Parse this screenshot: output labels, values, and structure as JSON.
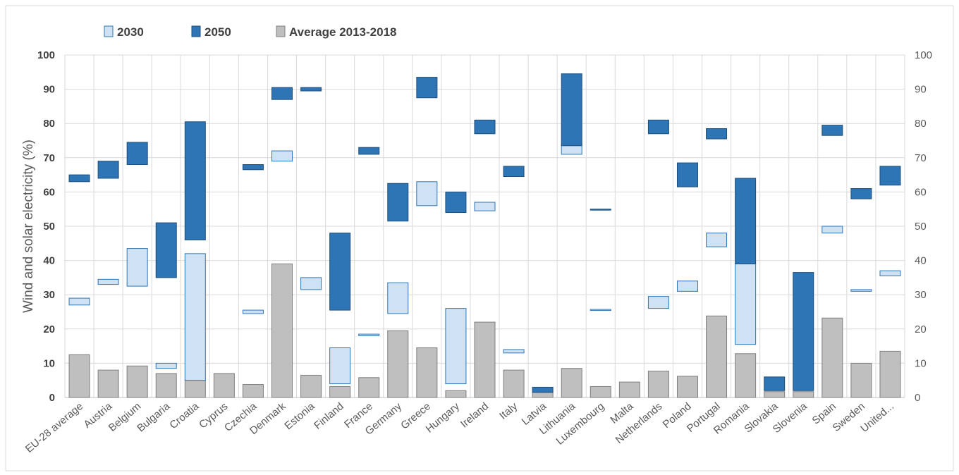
{
  "chart_data": {
    "type": "bar",
    "ylabel": "Wind and solar electricity (%)",
    "xlabel": "",
    "ylim": [
      0,
      100
    ],
    "yticks": [
      0,
      10,
      20,
      30,
      40,
      50,
      60,
      70,
      80,
      90,
      100
    ],
    "secondary_y_axis": true,
    "grid": true,
    "legend_position": "top-left",
    "categories": [
      "EU-28 average",
      "Austria",
      "Belgium",
      "Bulgaria",
      "Croatia",
      "Cyprus",
      "Czechia",
      "Denmark",
      "Estonia",
      "Finland",
      "France",
      "Germany",
      "Greece",
      "Hungary",
      "Ireland",
      "Italy",
      "Latvia",
      "Lithuania",
      "Luxembourg",
      "Malta",
      "Netherlands",
      "Poland",
      "Portugal",
      "Romania",
      "Slovakia",
      "Slovenia",
      "Spain",
      "Sweden",
      "United..."
    ],
    "series": [
      {
        "name": "2030",
        "kind": "range",
        "color": "#cfe2f3",
        "border": "#2e75b6",
        "ranges": [
          [
            27,
            29
          ],
          [
            33,
            34.5
          ],
          [
            32.5,
            43.5
          ],
          [
            8.5,
            10
          ],
          [
            5,
            42
          ],
          null,
          [
            24.5,
            25.5
          ],
          [
            69,
            72
          ],
          [
            31.5,
            35
          ],
          [
            4,
            14.5
          ],
          [
            18,
            18.5
          ],
          [
            24.5,
            33.5
          ],
          [
            56,
            63
          ],
          [
            4,
            26
          ],
          [
            54.5,
            57
          ],
          [
            13,
            14
          ],
          null,
          [
            71,
            74
          ],
          [
            25.5,
            25.7
          ],
          null,
          [
            26,
            29.5
          ],
          [
            31,
            34
          ],
          [
            44,
            48
          ],
          [
            15.5,
            39
          ],
          null,
          null,
          [
            48,
            50
          ],
          [
            31,
            31.5
          ],
          [
            35.5,
            37
          ]
        ]
      },
      {
        "name": "2050",
        "kind": "range",
        "color": "#2e75b6",
        "border": "#1f4e79",
        "ranges": [
          [
            63,
            65
          ],
          [
            64,
            69
          ],
          [
            68,
            74.5
          ],
          [
            35,
            51
          ],
          [
            46,
            80.5
          ],
          null,
          [
            66.5,
            68
          ],
          [
            87,
            90.5
          ],
          [
            89.5,
            90.5
          ],
          [
            25.5,
            48
          ],
          [
            71,
            73
          ],
          [
            51.5,
            62.5
          ],
          [
            87.5,
            93.5
          ],
          [
            54,
            60
          ],
          [
            77,
            81
          ],
          [
            64.5,
            67.5
          ],
          [
            1.5,
            3
          ],
          [
            73.5,
            94.5
          ],
          [
            54.7,
            55
          ],
          null,
          [
            77,
            81
          ],
          [
            61.5,
            68.5
          ],
          [
            75.5,
            78.5
          ],
          [
            39,
            64
          ],
          [
            2,
            6
          ],
          [
            2,
            36.5
          ],
          [
            76.5,
            79.5
          ],
          [
            58,
            61
          ],
          [
            62,
            67.5
          ]
        ]
      },
      {
        "name": "Average 2013-2018",
        "kind": "bar",
        "color": "#bfbfbf",
        "border": "#7f7f7f",
        "values": [
          12.5,
          8,
          9.2,
          7,
          5.2,
          7,
          3.8,
          39,
          6.5,
          3.2,
          5.8,
          19.5,
          14.5,
          2,
          22,
          8,
          1.5,
          8.5,
          3.2,
          4.5,
          7.7,
          6.2,
          23.8,
          12.8,
          1.7,
          1.7,
          23.2,
          10,
          13.5
        ]
      }
    ]
  }
}
